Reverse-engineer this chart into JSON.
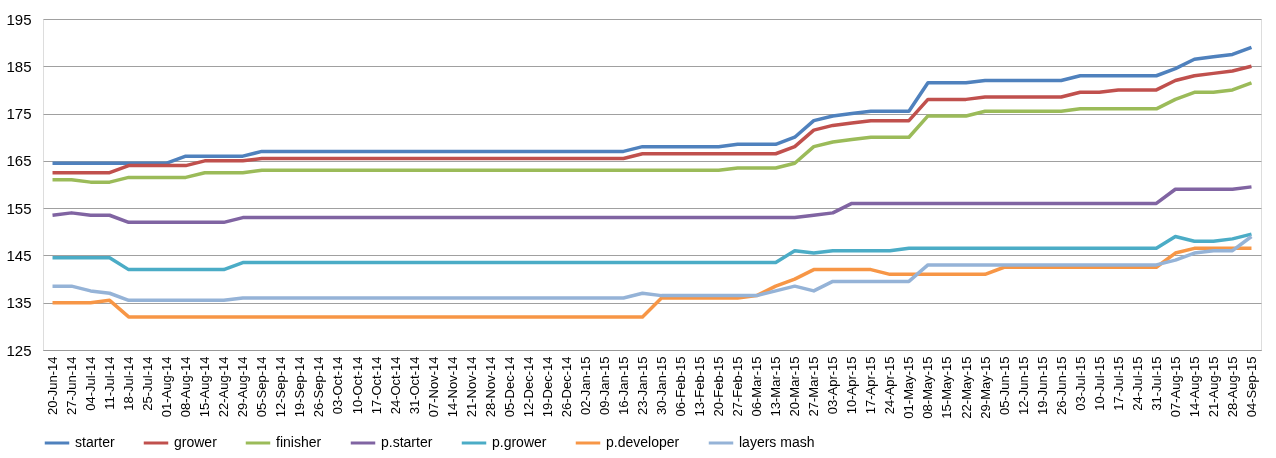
{
  "chart_data": {
    "type": "line",
    "categories": [
      "20-Jun-14",
      "27-Jun-14",
      "04-Jul-14",
      "11-Jul-14",
      "18-Jul-14",
      "25-Jul-14",
      "01-Aug-14",
      "08-Aug-14",
      "15-Aug-14",
      "22-Aug-14",
      "29-Aug-14",
      "05-Sep-14",
      "12-Sep-14",
      "19-Sep-14",
      "26-Sep-14",
      "03-Oct-14",
      "10-Oct-14",
      "17-Oct-14",
      "24-Oct-14",
      "31-Oct-14",
      "07-Nov-14",
      "14-Nov-14",
      "21-Nov-14",
      "28-Nov-14",
      "05-Dec-14",
      "12-Dec-14",
      "19-Dec-14",
      "26-Dec-14",
      "02-Jan-15",
      "09-Jan-15",
      "16-Jan-15",
      "23-Jan-15",
      "30-Jan-15",
      "06-Feb-15",
      "13-Feb-15",
      "20-Feb-15",
      "27-Feb-15",
      "06-Mar-15",
      "13-Mar-15",
      "20-Mar-15",
      "27-Mar-15",
      "03-Apr-15",
      "10-Apr-15",
      "17-Apr-15",
      "24-Apr-15",
      "01-May-15",
      "08-May-15",
      "15-May-15",
      "22-May-15",
      "29-May-15",
      "05-Jun-15",
      "12-Jun-15",
      "19-Jun-15",
      "26-Jun-15",
      "03-Jul-15",
      "10-Jul-15",
      "17-Jul-15",
      "24-Jul-15",
      "31-Jul-15",
      "07-Aug-15",
      "14-Aug-15",
      "21-Aug-15",
      "28-Aug-15",
      "04-Sep-15"
    ],
    "series": [
      {
        "name": "starter",
        "color": "#4f81bd",
        "values": [
          164.5,
          164.5,
          164.5,
          164.5,
          164.5,
          164.5,
          164.5,
          166,
          166,
          166,
          166,
          167,
          167,
          167,
          167,
          167,
          167,
          167,
          167,
          167,
          167,
          167,
          167,
          167,
          167,
          167,
          167,
          167,
          167,
          167,
          167,
          168,
          168,
          168,
          168,
          168,
          168.5,
          168.5,
          168.5,
          170,
          173.5,
          174.5,
          175,
          175.5,
          175.5,
          175.5,
          181.5,
          181.5,
          181.5,
          182,
          182,
          182,
          182,
          182,
          183,
          183,
          183,
          183,
          183,
          184.5,
          186.5,
          187,
          187.5,
          189
        ]
      },
      {
        "name": "grower",
        "color": "#c0504d",
        "values": [
          162.5,
          162.5,
          162.5,
          162.5,
          164,
          164,
          164,
          164,
          165,
          165,
          165,
          165.5,
          165.5,
          165.5,
          165.5,
          165.5,
          165.5,
          165.5,
          165.5,
          165.5,
          165.5,
          165.5,
          165.5,
          165.5,
          165.5,
          165.5,
          165.5,
          165.5,
          165.5,
          165.5,
          165.5,
          166.5,
          166.5,
          166.5,
          166.5,
          166.5,
          166.5,
          166.5,
          166.5,
          168,
          171.5,
          172.5,
          173,
          173.5,
          173.5,
          173.5,
          178,
          178,
          178,
          178.5,
          178.5,
          178.5,
          178.5,
          178.5,
          179.5,
          179.5,
          180,
          180,
          180,
          182,
          183,
          183.5,
          184,
          185
        ]
      },
      {
        "name": "finisher",
        "color": "#9bbb59",
        "values": [
          161,
          161,
          160.5,
          160.5,
          161.5,
          161.5,
          161.5,
          161.5,
          162.5,
          162.5,
          162.5,
          163,
          163,
          163,
          163,
          163,
          163,
          163,
          163,
          163,
          163,
          163,
          163,
          163,
          163,
          163,
          163,
          163,
          163,
          163,
          163,
          163,
          163,
          163,
          163,
          163,
          163.5,
          163.5,
          163.5,
          164.5,
          168,
          169,
          169.5,
          170,
          170,
          170,
          174.5,
          174.5,
          174.5,
          175.5,
          175.5,
          175.5,
          175.5,
          175.5,
          176,
          176,
          176,
          176,
          176,
          178,
          179.5,
          179.5,
          180,
          181.5
        ]
      },
      {
        "name": "p.starter",
        "color": "#8064a2",
        "values": [
          153.5,
          154,
          153.5,
          153.5,
          152,
          152,
          152,
          152,
          152,
          152,
          153,
          153,
          153,
          153,
          153,
          153,
          153,
          153,
          153,
          153,
          153,
          153,
          153,
          153,
          153,
          153,
          153,
          153,
          153,
          153,
          153,
          153,
          153,
          153,
          153,
          153,
          153,
          153,
          153,
          153,
          153.5,
          154,
          156,
          156,
          156,
          156,
          156,
          156,
          156,
          156,
          156,
          156,
          156,
          156,
          156,
          156,
          156,
          156,
          156,
          159,
          159,
          159,
          159,
          159.5
        ]
      },
      {
        "name": "p.grower",
        "color": "#4bacc6",
        "values": [
          144.5,
          144.5,
          144.5,
          144.5,
          142,
          142,
          142,
          142,
          142,
          142,
          143.5,
          143.5,
          143.5,
          143.5,
          143.5,
          143.5,
          143.5,
          143.5,
          143.5,
          143.5,
          143.5,
          143.5,
          143.5,
          143.5,
          143.5,
          143.5,
          143.5,
          143.5,
          143.5,
          143.5,
          143.5,
          143.5,
          143.5,
          143.5,
          143.5,
          143.5,
          143.5,
          143.5,
          143.5,
          146,
          145.5,
          146,
          146,
          146,
          146,
          146.5,
          146.5,
          146.5,
          146.5,
          146.5,
          146.5,
          146.5,
          146.5,
          146.5,
          146.5,
          146.5,
          146.5,
          146.5,
          146.5,
          149,
          148,
          148,
          148.5,
          149.5
        ]
      },
      {
        "name": "p.developer",
        "color": "#f79646",
        "values": [
          135,
          135,
          135,
          135.5,
          132,
          132,
          132,
          132,
          132,
          132,
          132,
          132,
          132,
          132,
          132,
          132,
          132,
          132,
          132,
          132,
          132,
          132,
          132,
          132,
          132,
          132,
          132,
          132,
          132,
          132,
          132,
          132,
          136,
          136,
          136,
          136,
          136,
          136.5,
          138.5,
          140,
          142,
          142,
          142,
          142,
          141,
          141,
          141,
          141,
          141,
          141,
          142.5,
          142.5,
          142.5,
          142.5,
          142.5,
          142.5,
          142.5,
          142.5,
          142.5,
          145.5,
          146.5,
          146.5,
          146.5,
          146.5
        ]
      },
      {
        "name": "layers mash",
        "color": "#95b3d7",
        "values": [
          138.5,
          138.5,
          137.5,
          137,
          135.5,
          135.5,
          135.5,
          135.5,
          135.5,
          135.5,
          136,
          136,
          136,
          136,
          136,
          136,
          136,
          136,
          136,
          136,
          136,
          136,
          136,
          136,
          136,
          136,
          136,
          136,
          136,
          136,
          136,
          137,
          136.5,
          136.5,
          136.5,
          136.5,
          136.5,
          136.5,
          137.5,
          138.5,
          137.5,
          139.5,
          139.5,
          139.5,
          139.5,
          139.5,
          143,
          143,
          143,
          143,
          143,
          143,
          143,
          143,
          143,
          143,
          143,
          143,
          143,
          144,
          145.5,
          146,
          146,
          149
        ]
      }
    ],
    "ylim": [
      125,
      195
    ],
    "yticks": [
      125,
      135,
      145,
      155,
      165,
      175,
      185,
      195
    ],
    "grid": "y",
    "legend": "bottom",
    "marker": "none",
    "line_style": "solid"
  }
}
